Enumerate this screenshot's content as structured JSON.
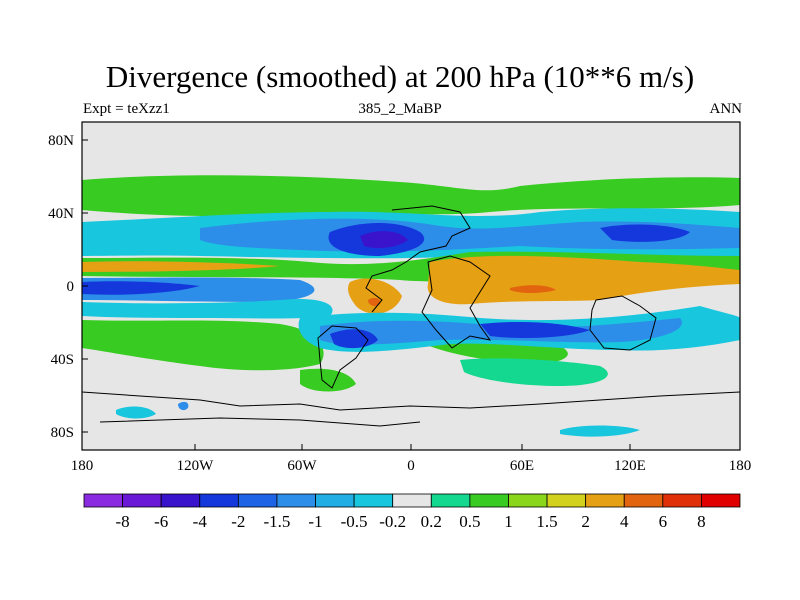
{
  "title": "Divergence (smoothed) at 200 hPa (10**6 m/s)",
  "subtitle_left": "Expt = teXzz1",
  "subtitle_center": "385_2_MaBP",
  "subtitle_right": "ANN",
  "y_axis_labels": [
    "80N",
    "40N",
    "0",
    "40S",
    "80S"
  ],
  "x_axis_labels": [
    "180",
    "120W",
    "60W",
    "0",
    "60E",
    "120E",
    "180"
  ],
  "colorbar": {
    "labels": [
      "-8",
      "-6",
      "-4",
      "-2",
      "-1.5",
      "-1",
      "-0.5",
      "-0.2",
      "0.2",
      "0.5",
      "1",
      "1.5",
      "2",
      "4",
      "6",
      "8"
    ],
    "colors": [
      "#8a2be2",
      "#6a1ad6",
      "#3a14cc",
      "#1438dc",
      "#1e64e6",
      "#2c8ee8",
      "#20aee4",
      "#18c6de",
      "#e6e6e6",
      "#14d890",
      "#38cc22",
      "#8ad61a",
      "#d2d21e",
      "#e6a014",
      "#e2640e",
      "#e0300a",
      "#e00000"
    ]
  },
  "colors": {
    "background_land": "#e6e6e6",
    "neg_light": "#18c6de",
    "neg_mid": "#2c8ee8",
    "neg_strong": "#1438dc",
    "neg_max": "#3a14cc",
    "pos_light": "#14d890",
    "pos_mid": "#38cc22",
    "pos_orange": "#e6a014",
    "pos_red": "#e2640e"
  }
}
